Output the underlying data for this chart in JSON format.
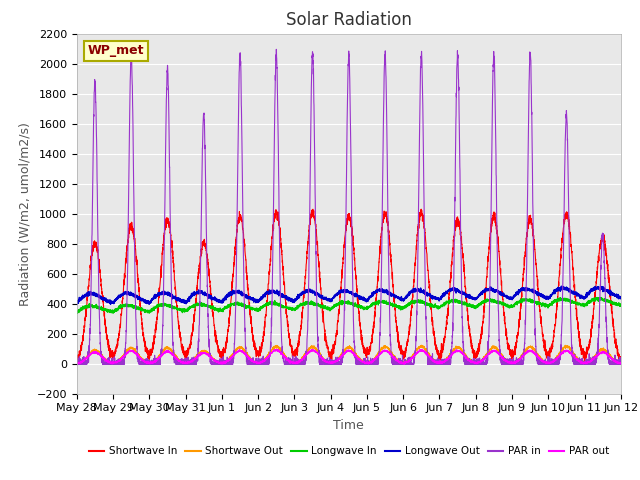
{
  "title": "Solar Radiation",
  "ylabel": "Radiation (W/m2, umol/m2/s)",
  "xlabel": "Time",
  "ylim": [
    -200,
    2200
  ],
  "bg_color": "#e8e8e8",
  "label_box": "WP_met",
  "x_tick_labels": [
    "May 28",
    "May 29",
    "May 30",
    "May 31",
    "Jun 1",
    "Jun 2",
    "Jun 3",
    "Jun 4",
    "Jun 5",
    "Jun 6",
    "Jun 7",
    "Jun 8",
    "Jun 9",
    "Jun 10",
    "Jun 11",
    "Jun 12"
  ],
  "legend_entries": [
    {
      "label": "Shortwave In",
      "color": "#ff0000"
    },
    {
      "label": "Shortwave Out",
      "color": "#ff9900"
    },
    {
      "label": "Longwave In",
      "color": "#00cc00"
    },
    {
      "label": "Longwave Out",
      "color": "#0000cc"
    },
    {
      "label": "PAR in",
      "color": "#9933cc"
    },
    {
      "label": "PAR out",
      "color": "#ff00ff"
    }
  ],
  "num_days": 15,
  "pts_per_day": 288,
  "shortwave_in_peak": [
    800,
    920,
    960,
    800,
    980,
    1010,
    1010,
    980,
    1000,
    1000,
    960,
    980,
    960,
    1000,
    840
  ],
  "shortwave_out_peak": [
    90,
    105,
    105,
    85,
    108,
    115,
    112,
    110,
    112,
    115,
    108,
    110,
    112,
    115,
    95
  ],
  "par_in_peak": [
    1880,
    2050,
    1960,
    1660,
    2060,
    2070,
    2080,
    2060,
    2060,
    2070,
    2060,
    2060,
    2060,
    1660,
    860
  ],
  "par_out_peak": [
    75,
    85,
    80,
    70,
    85,
    90,
    88,
    85,
    85,
    88,
    85,
    85,
    85,
    85,
    75
  ],
  "longwave_in_base": 340,
  "longwave_out_base": 400,
  "title_fontsize": 12,
  "axis_label_fontsize": 9,
  "tick_fontsize": 8
}
